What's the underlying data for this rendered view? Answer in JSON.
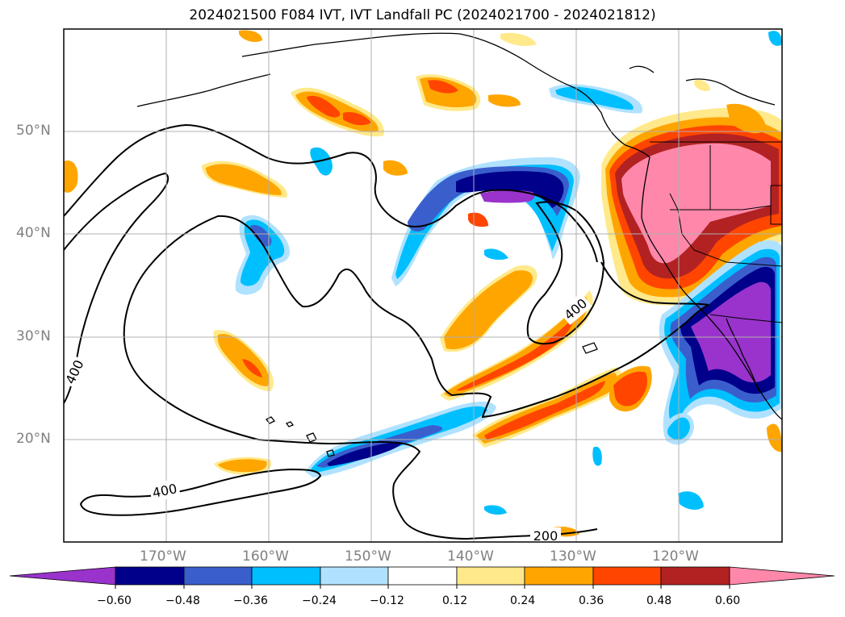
{
  "title": "2024021500 F084 IVT, IVT Landfall PC (2024021700 - 2024021812)",
  "lat_labels": [
    "50°N",
    "40°N",
    "30°N",
    "20°N"
  ],
  "lon_labels": [
    "170°W",
    "160°W",
    "150°W",
    "140°W",
    "130°W",
    "120°W"
  ],
  "contour_labels": [
    "400",
    "400",
    "400",
    "200"
  ],
  "colorbar": {
    "colors": [
      "#9933cc",
      "#00008b",
      "#3a5fcd",
      "#00bfff",
      "#b0e2ff",
      "#ffffff",
      "#ffe98a",
      "#ffa500",
      "#ff4500",
      "#b22222",
      "#ff88aa"
    ],
    "tick_labels": [
      "−0.60",
      "−0.48",
      "−0.36",
      "−0.24",
      "−0.12",
      "0.12",
      "0.24",
      "0.36",
      "0.48",
      "0.60"
    ]
  }
}
